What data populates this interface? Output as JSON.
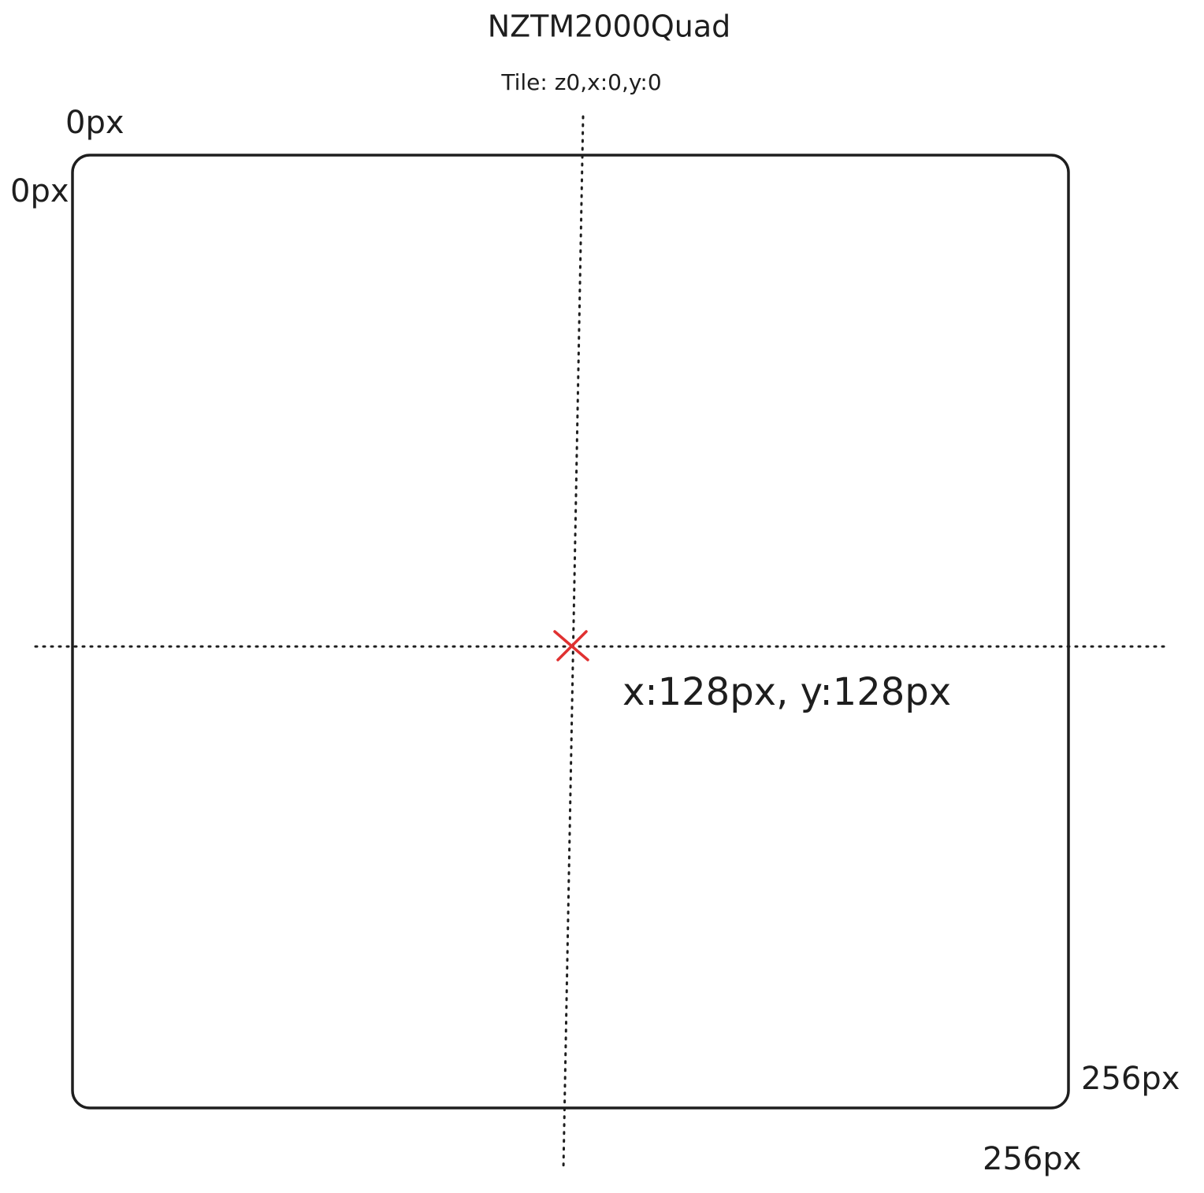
{
  "title": "NZTM2000Quad",
  "subtitle": "Tile: z0,x:0,y:0",
  "labels": [
    "0px",
    "0px",
    "256px",
    "256px"
  ],
  "point": {
    "label": "x:128px, y:128px"
  }
}
